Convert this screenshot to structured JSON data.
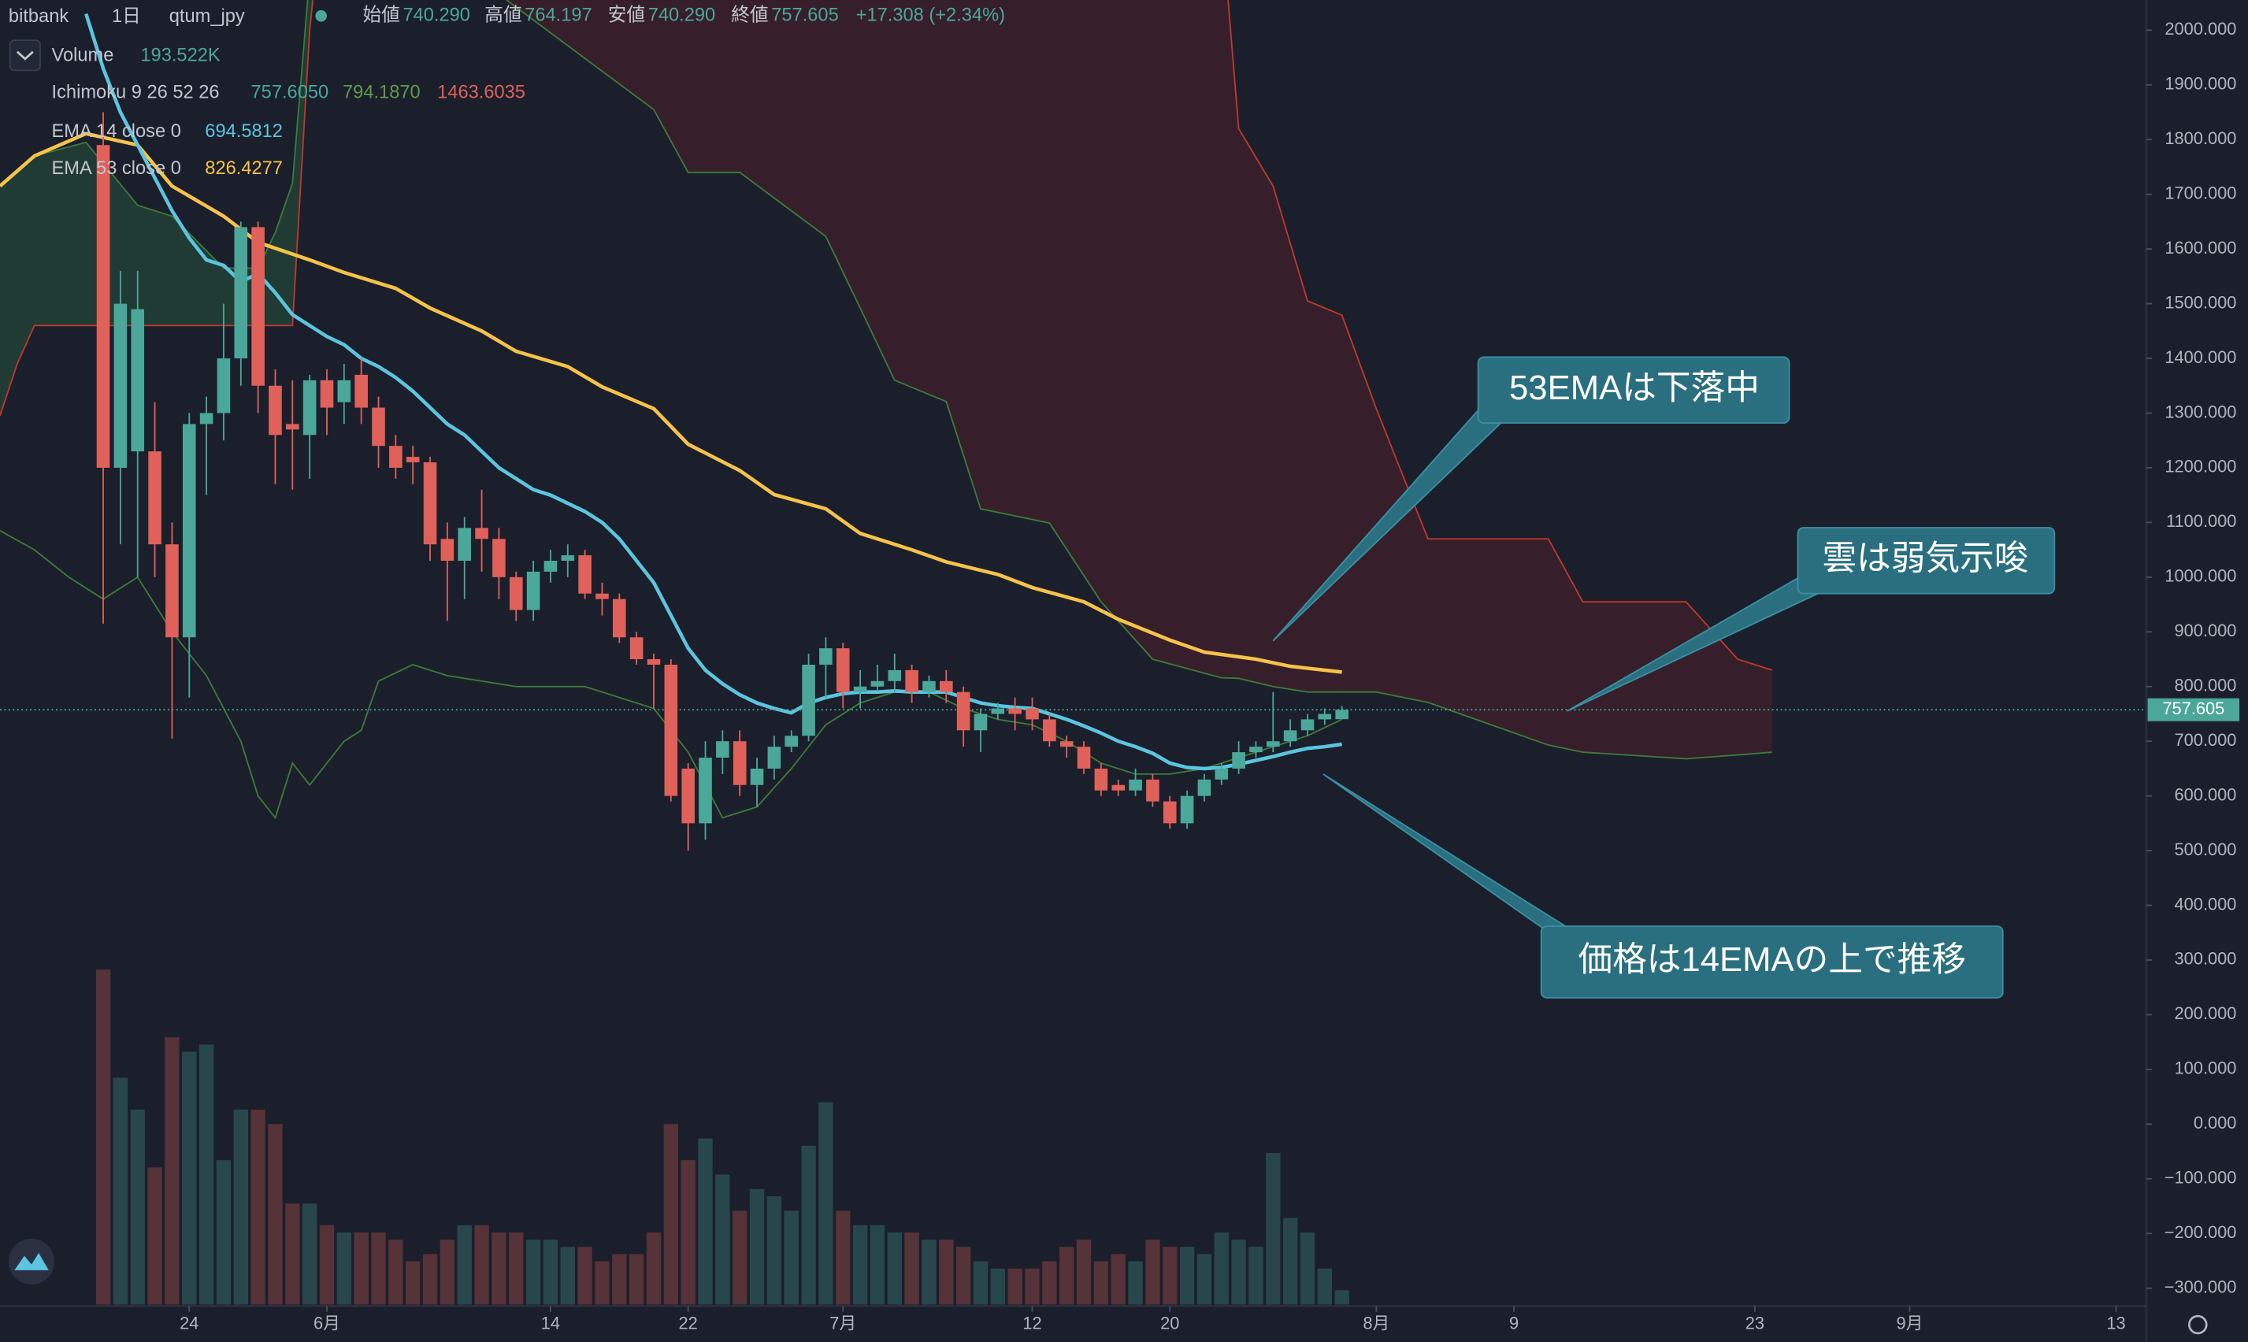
{
  "header": {
    "exchange": "bitbank",
    "interval": "1日",
    "symbol": "qtum_jpy",
    "ohlc": [
      {
        "label": "始値",
        "value": "740.290"
      },
      {
        "label": "高値",
        "value": "764.197"
      },
      {
        "label": "安値",
        "value": "740.290"
      },
      {
        "label": "終値",
        "value": "757.605"
      }
    ],
    "change": "+17.308 (+2.34%)"
  },
  "legend": {
    "volume": {
      "name": "Volume",
      "value": "193.522K"
    },
    "ichimoku": {
      "name": "Ichimoku 9 26 52 26",
      "values": [
        "757.6050",
        "794.1870",
        "1463.6035"
      ]
    },
    "ema14": {
      "name": "EMA 14 close 0",
      "value": "694.5812"
    },
    "ema53": {
      "name": "EMA 53 close 0",
      "value": "826.4277"
    }
  },
  "annotations": [
    "53EMAは下落中",
    "雲は弱気示唆",
    "価格は14EMAの上で推移"
  ],
  "chart_data": {
    "type": "candlestick",
    "up_color": "#4aa79a",
    "down_color": "#e0605a",
    "xlim": [
      -6,
      118.5
    ],
    "ylim": [
      -330,
      2055
    ],
    "xticks": [
      {
        "value": 5,
        "label": "24"
      },
      {
        "value": 13,
        "label": "6月"
      },
      {
        "value": 26,
        "label": "14"
      },
      {
        "value": 34,
        "label": "22"
      },
      {
        "value": 43,
        "label": "7月"
      },
      {
        "value": 54,
        "label": "12"
      },
      {
        "value": 62,
        "label": "20"
      },
      {
        "value": 74,
        "label": "8月"
      },
      {
        "value": 82,
        "label": "9"
      },
      {
        "value": 96,
        "label": "23"
      },
      {
        "value": 105,
        "label": "9月"
      },
      {
        "value": 117,
        "label": "13"
      }
    ],
    "yticks": [
      {
        "value": 2000,
        "label": "2000.000"
      },
      {
        "value": 1900,
        "label": "1900.000"
      },
      {
        "value": 1800,
        "label": "1800.000"
      },
      {
        "value": 1700,
        "label": "1700.000"
      },
      {
        "value": 1600,
        "label": "1600.000"
      },
      {
        "value": 1500,
        "label": "1500.000"
      },
      {
        "value": 1400,
        "label": "1400.000"
      },
      {
        "value": 1300,
        "label": "1300.000"
      },
      {
        "value": 1200,
        "label": "1200.000"
      },
      {
        "value": 1100,
        "label": "1100.000"
      },
      {
        "value": 1000,
        "label": "1000.000"
      },
      {
        "value": 900,
        "label": "900.000"
      },
      {
        "value": 800,
        "label": "800.000"
      },
      {
        "value": 700,
        "label": "700.000"
      },
      {
        "value": 600,
        "label": "600.000"
      },
      {
        "value": 500,
        "label": "500.000"
      },
      {
        "value": 400,
        "label": "400.000"
      },
      {
        "value": 300,
        "label": "300.000"
      },
      {
        "value": 200,
        "label": "200.000"
      },
      {
        "value": 100,
        "label": "100.000"
      },
      {
        "value": 0,
        "label": "0.000"
      },
      {
        "value": -100,
        "label": "−100.000"
      },
      {
        "value": -200,
        "label": "−200.000"
      },
      {
        "value": -300,
        "label": "−300.000"
      }
    ],
    "last_price": 757.605,
    "x": [
      0,
      1,
      2,
      3,
      4,
      5,
      6,
      7,
      8,
      9,
      10,
      11,
      12,
      13,
      14,
      15,
      16,
      17,
      18,
      19,
      20,
      21,
      22,
      23,
      24,
      25,
      26,
      27,
      28,
      29,
      30,
      31,
      32,
      33,
      34,
      35,
      36,
      37,
      38,
      39,
      40,
      41,
      42,
      43,
      44,
      45,
      46,
      47,
      48,
      49,
      50,
      51,
      52,
      53,
      54,
      55,
      56,
      57,
      58,
      59,
      60,
      61,
      62,
      63,
      64,
      65,
      66,
      67,
      68,
      69,
      70,
      71,
      72
    ],
    "open": [
      1790,
      1200,
      1230,
      1230,
      1060,
      890,
      1280,
      1300,
      1400,
      1640,
      1350,
      1280,
      1260,
      1360,
      1320,
      1370,
      1310,
      1240,
      1220,
      1210,
      1070,
      1030,
      1090,
      1070,
      1000,
      940,
      1010,
      1030,
      1040,
      970,
      960,
      890,
      850,
      840,
      650,
      550,
      670,
      700,
      620,
      650,
      690,
      710,
      840,
      870,
      790,
      800,
      810,
      830,
      790,
      810,
      790,
      720,
      750,
      760,
      760,
      740,
      700,
      690,
      650,
      620,
      610,
      630,
      590,
      550,
      600,
      630,
      650,
      680,
      690,
      700,
      720,
      740,
      740.29
    ],
    "high": [
      1850,
      1560,
      1560,
      1320,
      1100,
      1300,
      1330,
      1500,
      1650,
      1650,
      1380,
      1360,
      1370,
      1380,
      1390,
      1400,
      1330,
      1260,
      1240,
      1220,
      1100,
      1110,
      1160,
      1090,
      1010,
      1030,
      1050,
      1060,
      1050,
      990,
      970,
      900,
      860,
      850,
      660,
      700,
      720,
      720,
      670,
      710,
      720,
      860,
      890,
      880,
      830,
      840,
      860,
      840,
      820,
      830,
      800,
      760,
      770,
      780,
      780,
      750,
      710,
      700,
      660,
      630,
      650,
      640,
      600,
      610,
      640,
      660,
      700,
      700,
      790,
      740,
      750,
      760,
      764.197
    ],
    "low": [
      915,
      1060,
      1000,
      1000,
      705,
      780,
      1150,
      1250,
      1350,
      1300,
      1170,
      1160,
      1180,
      1260,
      1280,
      1280,
      1200,
      1180,
      1170,
      1030,
      920,
      960,
      1010,
      960,
      920,
      920,
      990,
      1000,
      960,
      930,
      880,
      840,
      760,
      590,
      500,
      520,
      640,
      600,
      580,
      630,
      680,
      700,
      780,
      760,
      760,
      790,
      790,
      770,
      780,
      770,
      690,
      680,
      740,
      720,
      720,
      690,
      670,
      640,
      600,
      600,
      600,
      580,
      540,
      540,
      590,
      620,
      640,
      670,
      680,
      690,
      710,
      730,
      740.29
    ],
    "close": [
      1200,
      1500,
      1490,
      1060,
      890,
      1280,
      1300,
      1400,
      1640,
      1350,
      1260,
      1270,
      1360,
      1310,
      1360,
      1310,
      1240,
      1200,
      1210,
      1060,
      1030,
      1090,
      1070,
      1000,
      940,
      1010,
      1030,
      1040,
      970,
      960,
      890,
      850,
      840,
      600,
      550,
      670,
      700,
      620,
      650,
      690,
      710,
      840,
      870,
      790,
      800,
      810,
      830,
      790,
      810,
      790,
      720,
      750,
      760,
      750,
      740,
      700,
      690,
      650,
      610,
      610,
      630,
      590,
      550,
      600,
      630,
      650,
      680,
      690,
      700,
      720,
      740,
      750,
      757.605
    ],
    "volume_lim": [
      0,
      9000
    ],
    "volume": [
      8853,
      5928,
      5070,
      3510,
      7020,
      6630,
      6825,
      3705,
      5070,
      5070,
      4680,
      2535,
      2535,
      1950,
      1755,
      1755,
      1755,
      1560,
      975,
      1170,
      1560,
      1950,
      1950,
      1755,
      1755,
      1560,
      1560,
      1365,
      1365,
      975,
      1170,
      1170,
      1755,
      4680,
      3705,
      4290,
      3315,
      2340,
      2925,
      2730,
      2340,
      4095,
      5265,
      2340,
      1950,
      1950,
      1755,
      1755,
      1560,
      1560,
      1365,
      975,
      780,
      780,
      780,
      975,
      1365,
      1560,
      975,
      1170,
      975,
      1560,
      1365,
      1365,
      1170,
      1755,
      1560,
      1365,
      3900,
      2145,
      1755,
      780,
      193.522
    ],
    "lines": [
      {
        "color": "#5bc4de",
        "width": 2.5,
        "x": [
          -1,
          0,
          1,
          2,
          3,
          4,
          5,
          6,
          7,
          8,
          9,
          10,
          11,
          12,
          13,
          14,
          15,
          16,
          17,
          18,
          19,
          20,
          21,
          22,
          23,
          24,
          25,
          26,
          27,
          28,
          29,
          30,
          31,
          32,
          33,
          34,
          35,
          36,
          37,
          38,
          39,
          40,
          41,
          42,
          43,
          44,
          45,
          46,
          47,
          48,
          49,
          50,
          51,
          52,
          53,
          54,
          55,
          56,
          57,
          58,
          59,
          60,
          61,
          62,
          63,
          64,
          65,
          66,
          67,
          68,
          69,
          70,
          71,
          72
        ],
        "values": [
          2030,
          1930,
          1850,
          1790,
          1730,
          1670,
          1620,
          1580,
          1570,
          1540,
          1555,
          1520,
          1480,
          1460,
          1440,
          1425,
          1400,
          1385,
          1365,
          1340,
          1310,
          1280,
          1260,
          1230,
          1200,
          1180,
          1160,
          1150,
          1135,
          1120,
          1100,
          1070,
          1030,
          990,
          930,
          870,
          830,
          805,
          785,
          770,
          760,
          752,
          770,
          780,
          787,
          790,
          790,
          792,
          790,
          790,
          790,
          780,
          770,
          765,
          762,
          760,
          750,
          740,
          728,
          715,
          700,
          690,
          678,
          660,
          652,
          650,
          652,
          658,
          665,
          672,
          680,
          687,
          690,
          694.5812
        ]
      },
      {
        "color": "#f5c24a",
        "width": 2.5,
        "x": [
          -6,
          -4,
          -1,
          2,
          4,
          7,
          9,
          12,
          14,
          17,
          19,
          22,
          24,
          27,
          29,
          32,
          34,
          37,
          39,
          42,
          44,
          47,
          49,
          52,
          54,
          57,
          59,
          62,
          64,
          67,
          69,
          72
        ],
        "values": [
          1715,
          1770,
          1811,
          1790,
          1715,
          1660,
          1612,
          1580,
          1557,
          1528,
          1492,
          1450,
          1413,
          1385,
          1348,
          1308,
          1243,
          1195,
          1151,
          1125,
          1080,
          1050,
          1028,
          1005,
          981,
          955,
          923,
          885,
          863,
          850,
          837,
          826.4277
        ]
      },
      {
        "color": "#3f7a3a",
        "width": 1,
        "x": [
          -6,
          -4,
          -2,
          0,
          2,
          4,
          6,
          8,
          9,
          10,
          11,
          12,
          14,
          15,
          16,
          18,
          20,
          24,
          28,
          32,
          34,
          36,
          38,
          40,
          42,
          44,
          46,
          48,
          50,
          52,
          54,
          56,
          58,
          60,
          62,
          64,
          66,
          68,
          70,
          72
        ],
        "values": [
          1085,
          1050,
          1000,
          960,
          1000,
          900,
          820,
          700,
          600,
          560,
          660,
          620,
          700,
          720,
          810,
          840,
          820,
          800,
          800,
          760,
          680,
          560,
          580,
          650,
          730,
          770,
          790,
          790,
          760,
          740,
          730,
          700,
          660,
          640,
          640,
          650,
          670,
          690,
          710,
          740
        ]
      }
    ],
    "cloud": {
      "x": [
        -6,
        -5,
        -4,
        -1,
        2,
        4,
        7,
        9,
        10,
        11,
        12,
        13,
        29,
        32,
        34,
        37,
        42,
        44,
        46,
        49,
        51,
        55,
        58,
        61,
        65,
        66,
        68,
        70,
        72,
        74,
        77,
        84,
        86,
        92,
        95,
        97
      ],
      "span_a": {
        "color": "#3f7a3a",
        "values": [
          1715,
          1740,
          1770,
          1795,
          1680,
          1660,
          1565,
          1565,
          1630,
          1720,
          2100,
          2300,
          1925,
          1855,
          1740,
          1740,
          1623,
          1492,
          1360,
          1321,
          1125,
          1099,
          955,
          850,
          816,
          815,
          800,
          790,
          790,
          790,
          771,
          693,
          680,
          668,
          675,
          680
        ]
      },
      "span_b": {
        "color": "#c0392b",
        "values": [
          1295,
          1390,
          1460,
          1460,
          1460,
          1460,
          1460,
          1460,
          1460,
          1460,
          2000,
          2300,
          2300,
          2300,
          2300,
          2300,
          2300,
          2300,
          2300,
          2300,
          2300,
          2300,
          2300,
          2300,
          2200,
          1820,
          1715,
          1505,
          1479,
          1308,
          1070,
          1070,
          955,
          955,
          850,
          830
        ]
      },
      "up_fill": "rgba(46,125,70,0.30)",
      "down_fill": "rgba(120,32,40,0.30)"
    }
  }
}
